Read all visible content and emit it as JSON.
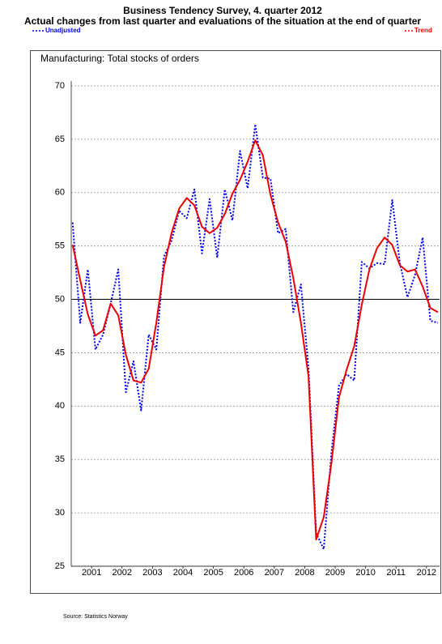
{
  "chart_data": {
    "type": "line",
    "title": "Business Tendency Survey, 4. quarter 2012",
    "subtitle": "Actual changes from last quarter and evaluations of the situation at the end of quarter",
    "panel_title": "Manufacturing:   Total stocks of orders",
    "source": "Source: Statistics Norway",
    "x": [
      2000.875,
      2001.125,
      2001.375,
      2001.625,
      2001.875,
      2002.125,
      2002.375,
      2002.625,
      2002.875,
      2003.125,
      2003.375,
      2003.625,
      2003.875,
      2004.125,
      2004.375,
      2004.625,
      2004.875,
      2005.125,
      2005.375,
      2005.625,
      2005.875,
      2006.125,
      2006.375,
      2006.625,
      2006.875,
      2007.125,
      2007.375,
      2007.625,
      2007.875,
      2008.125,
      2008.375,
      2008.625,
      2008.875,
      2009.125,
      2009.375,
      2009.625,
      2009.875,
      2010.125,
      2010.375,
      2010.625,
      2010.875,
      2011.125,
      2011.375,
      2011.625,
      2011.875,
      2012.125,
      2012.375,
      2012.625,
      2012.875
    ],
    "series": [
      {
        "name": "Unadjusted",
        "color": "#0000ee",
        "dashed": true,
        "values": [
          57.2,
          47.8,
          52.8,
          45.3,
          46.7,
          49.6,
          52.8,
          41.3,
          44.2,
          39.6,
          46.7,
          45.3,
          54.0,
          55.5,
          58.3,
          57.6,
          60.3,
          54.3,
          59.4,
          53.9,
          60.3,
          57.4,
          63.9,
          60.4,
          66.4,
          61.4,
          61.3,
          56.2,
          56.6,
          48.8,
          51.4,
          43.5,
          28.1,
          26.6,
          35.6,
          41.9,
          43.0,
          42.4,
          53.5,
          52.9,
          53.4,
          53.3,
          59.3,
          53.4,
          50.2,
          52.3,
          55.8,
          48.0,
          47.8
        ]
      },
      {
        "name": "Trend",
        "color": "#ee0000",
        "dashed": false,
        "values": [
          55.1,
          51.8,
          48.6,
          46.6,
          47.1,
          49.6,
          48.5,
          44.8,
          42.4,
          42.2,
          43.5,
          47.8,
          53.0,
          56.2,
          58.5,
          59.5,
          58.8,
          56.8,
          56.2,
          56.7,
          58.0,
          59.9,
          61.2,
          62.9,
          64.9,
          63.5,
          59.8,
          57.2,
          55.4,
          52.0,
          47.8,
          42.8,
          27.5,
          29.6,
          34.6,
          40.8,
          43.4,
          45.6,
          49.5,
          52.8,
          54.8,
          55.8,
          55.1,
          53.2,
          52.6,
          52.8,
          51.2,
          49.2,
          48.8
        ]
      }
    ],
    "xlim": [
      2000.83,
      2012.93
    ],
    "xticks": [
      {
        "value": 2001.5,
        "label": "2001"
      },
      {
        "value": 2002.5,
        "label": "2002"
      },
      {
        "value": 2003.5,
        "label": "2003"
      },
      {
        "value": 2004.5,
        "label": "2004"
      },
      {
        "value": 2005.5,
        "label": "2005"
      },
      {
        "value": 2006.5,
        "label": "2006"
      },
      {
        "value": 2007.5,
        "label": "2007"
      },
      {
        "value": 2008.5,
        "label": "2008"
      },
      {
        "value": 2009.5,
        "label": "2009"
      },
      {
        "value": 2010.5,
        "label": "2010"
      },
      {
        "value": 2011.5,
        "label": "2011"
      },
      {
        "value": 2012.5,
        "label": "2012"
      }
    ],
    "ylim": [
      25,
      70
    ],
    "yticks": [
      25,
      30,
      35,
      40,
      45,
      50,
      55,
      60,
      65,
      70
    ],
    "grid": true,
    "reference_line": 50
  }
}
